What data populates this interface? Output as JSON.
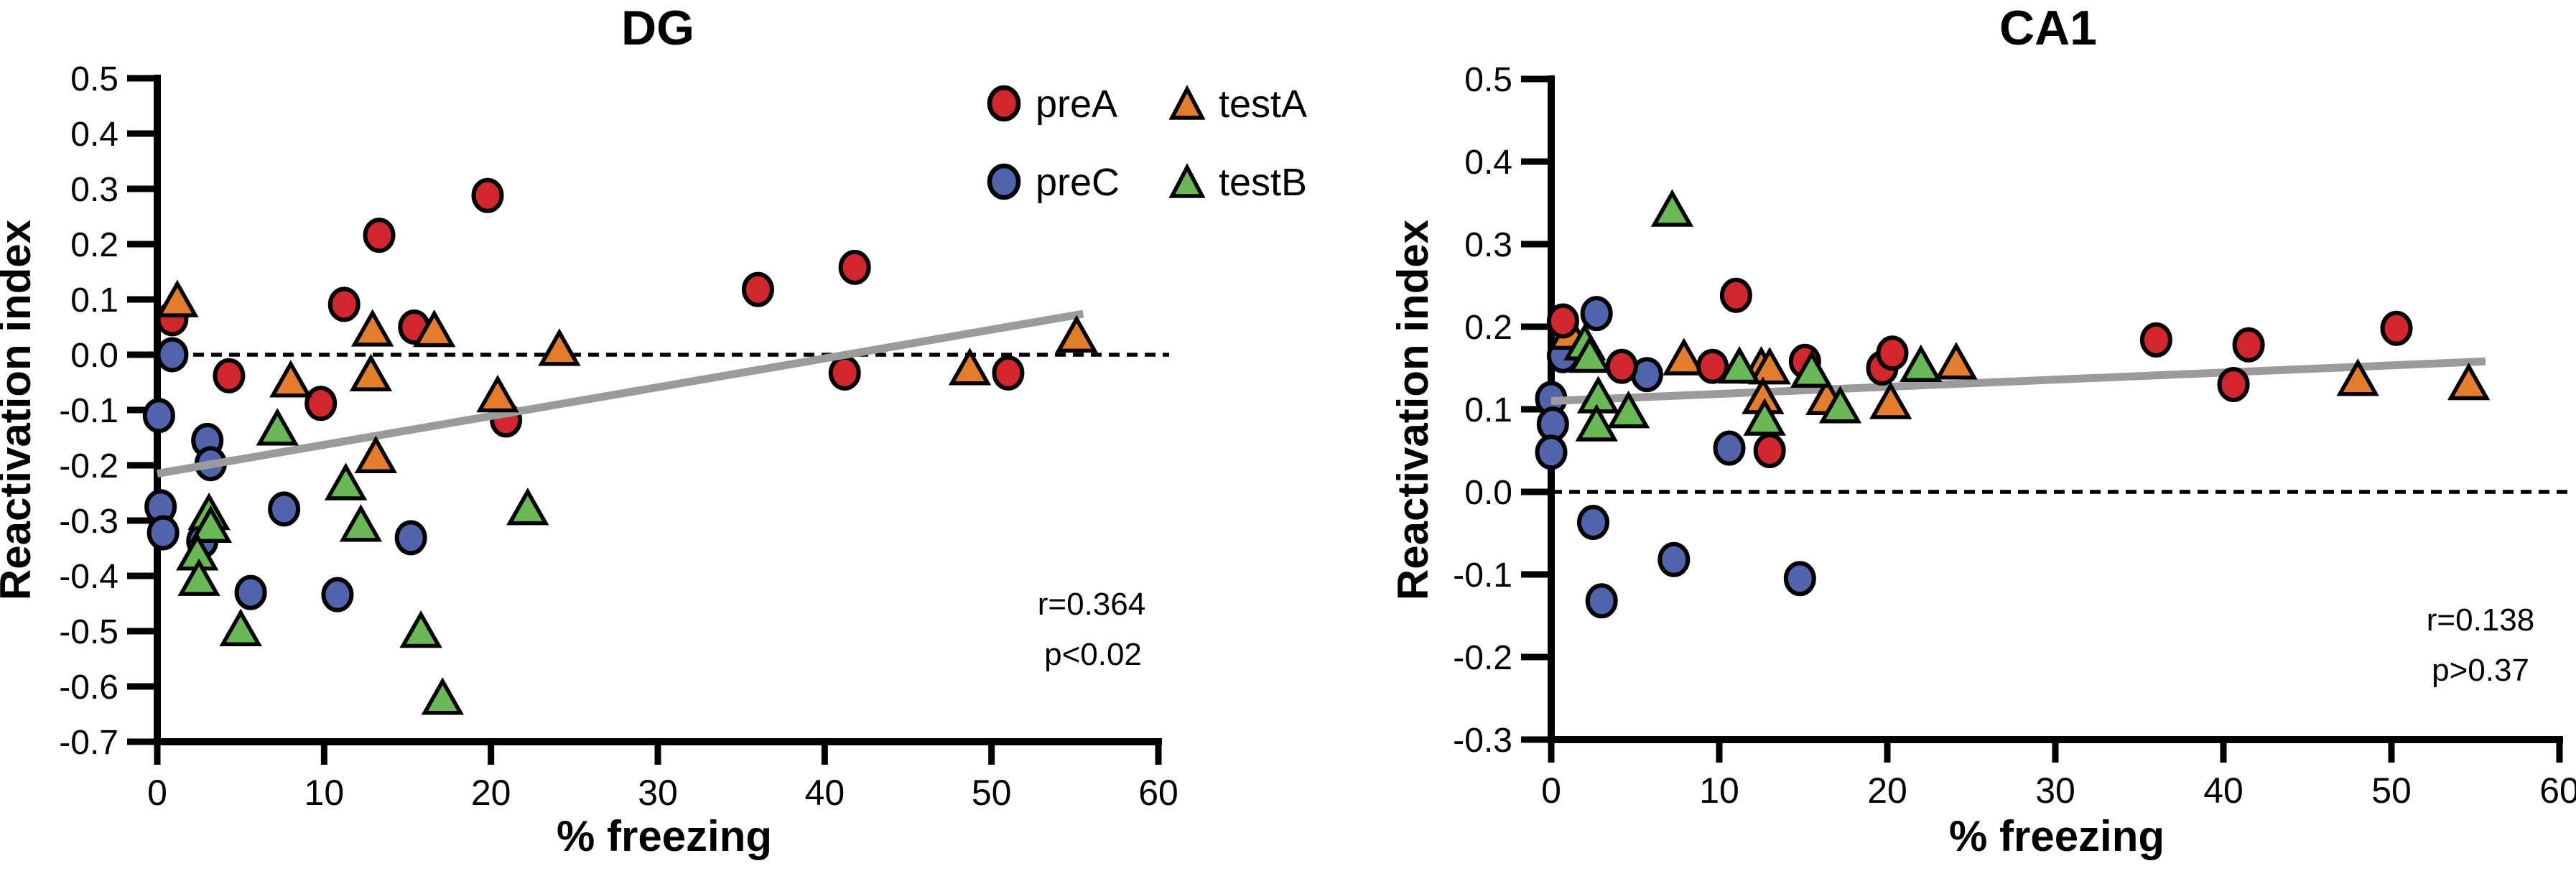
{
  "figure": {
    "background": "#ffffff",
    "axis_color": "#000000",
    "regression_line_color": "#9b9b9b",
    "zero_line_style": "dashed"
  },
  "legend": {
    "items": [
      {
        "label": "preA",
        "marker": "circle",
        "color": "#d2262e"
      },
      {
        "label": "preC",
        "marker": "circle",
        "color": "#5164ab"
      },
      {
        "label": "testA",
        "marker": "triangle",
        "color": "#e37d2d"
      },
      {
        "label": "testB",
        "marker": "triangle",
        "color": "#69b855"
      }
    ]
  },
  "chart_data": [
    {
      "type": "scatter",
      "title": "DG",
      "xlabel": "% freezing",
      "ylabel": "Reactivation index",
      "xlim": [
        0,
        60
      ],
      "ylim": [
        -0.7,
        0.5
      ],
      "x_ticks": [
        "0",
        "10",
        "20",
        "30",
        "40",
        "50",
        "60"
      ],
      "y_ticks": [
        "0.5",
        "0.4",
        "0.3",
        "0.2",
        "0.1",
        "0.0",
        "-0.1",
        "-0.2",
        "-0.3",
        "-0.4",
        "-0.5",
        "-0.6",
        "-0.7"
      ],
      "grid": false,
      "reference_line_y": 0.0,
      "regression": {
        "x1": 0,
        "y1": -0.215,
        "x2": 55.5,
        "y2": 0.074
      },
      "stats": {
        "r_label": "r=0.364",
        "p_label": "p<0.02"
      },
      "series": [
        {
          "name": "preC",
          "marker": "circle",
          "color": "#5164ab",
          "points": [
            [
              0.9,
              0.0
            ],
            [
              0.1,
              -0.11
            ],
            [
              3.0,
              -0.155
            ],
            [
              3.2,
              -0.197
            ],
            [
              0.2,
              -0.275
            ],
            [
              0.35,
              -0.322
            ],
            [
              2.7,
              -0.337
            ],
            [
              7.6,
              -0.279
            ],
            [
              15.2,
              -0.331
            ],
            [
              5.6,
              -0.43
            ],
            [
              10.8,
              -0.434
            ]
          ]
        },
        {
          "name": "preA",
          "marker": "circle",
          "color": "#d2262e",
          "points": [
            [
              0.9,
              0.065
            ],
            [
              4.3,
              -0.038
            ],
            [
              9.8,
              -0.088
            ],
            [
              11.2,
              0.091
            ],
            [
              13.3,
              0.216
            ],
            [
              15.4,
              0.05
            ],
            [
              19.8,
              0.288
            ],
            [
              20.9,
              -0.118
            ],
            [
              36.0,
              0.118
            ],
            [
              41.8,
              0.158
            ],
            [
              41.2,
              -0.033
            ],
            [
              51.0,
              -0.033
            ]
          ]
        },
        {
          "name": "testA",
          "marker": "triangle",
          "color": "#e37d2d",
          "points": [
            [
              1.2,
              0.096
            ],
            [
              8.0,
              -0.049
            ],
            [
              12.9,
              0.043
            ],
            [
              12.8,
              -0.038
            ],
            [
              13.1,
              -0.186
            ],
            [
              16.6,
              0.042
            ],
            [
              20.4,
              -0.076
            ],
            [
              24.1,
              0.008
            ],
            [
              48.7,
              -0.027
            ],
            [
              55.1,
              0.032
            ]
          ]
        },
        {
          "name": "testB",
          "marker": "triangle",
          "color": "#69b855",
          "points": [
            [
              7.2,
              -0.136
            ],
            [
              11.3,
              -0.235
            ],
            [
              22.2,
              -0.28
            ],
            [
              3.1,
              -0.289
            ],
            [
              3.2,
              -0.312
            ],
            [
              2.4,
              -0.362
            ],
            [
              2.5,
              -0.408
            ],
            [
              12.2,
              -0.31
            ],
            [
              5.0,
              -0.499
            ],
            [
              15.8,
              -0.502
            ],
            [
              17.1,
              -0.623
            ]
          ]
        }
      ]
    },
    {
      "type": "scatter",
      "title": "CA1",
      "xlabel": "% freezing",
      "ylabel": "Reactivation index",
      "xlim": [
        0,
        60
      ],
      "ylim": [
        -0.3,
        0.5
      ],
      "x_ticks": [
        "0",
        "10",
        "20",
        "30",
        "40",
        "50",
        "60"
      ],
      "y_ticks": [
        "0.5",
        "0.4",
        "0.3",
        "0.2",
        "0.1",
        "0.0",
        "-0.1",
        "-0.2",
        "-0.3"
      ],
      "grid": false,
      "reference_line_y": 0.0,
      "regression": {
        "x1": 0,
        "y1": 0.11,
        "x2": 55.6,
        "y2": 0.158
      },
      "stats": {
        "r_label": "r=0.138",
        "p_label": "p>0.37"
      },
      "series": [
        {
          "name": "preC",
          "marker": "circle",
          "color": "#5164ab",
          "points": [
            [
              0.0,
              0.113
            ],
            [
              0.1,
              0.082
            ],
            [
              0.0,
              0.048
            ],
            [
              0.7,
              0.165
            ],
            [
              2.7,
              0.216
            ],
            [
              5.7,
              0.142
            ],
            [
              10.6,
              0.053
            ],
            [
              2.5,
              -0.037
            ],
            [
              7.3,
              -0.082
            ],
            [
              3.0,
              -0.132
            ],
            [
              14.8,
              -0.105
            ]
          ]
        },
        {
          "name": "testA",
          "marker": "triangle",
          "color": "#e37d2d",
          "points": [
            [
              1.1,
              0.191
            ],
            [
              7.9,
              0.16
            ],
            [
              12.5,
              0.15
            ],
            [
              13.0,
              0.149
            ],
            [
              12.6,
              0.113
            ],
            [
              16.4,
              0.112
            ],
            [
              20.2,
              0.107
            ],
            [
              24.1,
              0.155
            ],
            [
              48.0,
              0.135
            ],
            [
              54.6,
              0.13
            ]
          ]
        },
        {
          "name": "preA",
          "marker": "circle",
          "color": "#d2262e",
          "points": [
            [
              0.7,
              0.207
            ],
            [
              4.2,
              0.152
            ],
            [
              9.6,
              0.152
            ],
            [
              11.0,
              0.238
            ],
            [
              13.0,
              0.05
            ],
            [
              15.1,
              0.158
            ],
            [
              19.7,
              0.15
            ],
            [
              20.3,
              0.168
            ],
            [
              36.0,
              0.184
            ],
            [
              41.5,
              0.178
            ],
            [
              40.6,
              0.13
            ],
            [
              50.3,
              0.198
            ]
          ]
        },
        {
          "name": "testB",
          "marker": "triangle",
          "color": "#69b855",
          "points": [
            [
              7.2,
              0.34
            ],
            [
              2.0,
              0.178
            ],
            [
              2.3,
              0.163
            ],
            [
              2.8,
              0.114
            ],
            [
              2.7,
              0.08
            ],
            [
              4.6,
              0.096
            ],
            [
              11.2,
              0.15
            ],
            [
              12.7,
              0.087
            ],
            [
              15.5,
              0.145
            ],
            [
              17.2,
              0.102
            ],
            [
              22.0,
              0.152
            ]
          ]
        }
      ]
    }
  ]
}
